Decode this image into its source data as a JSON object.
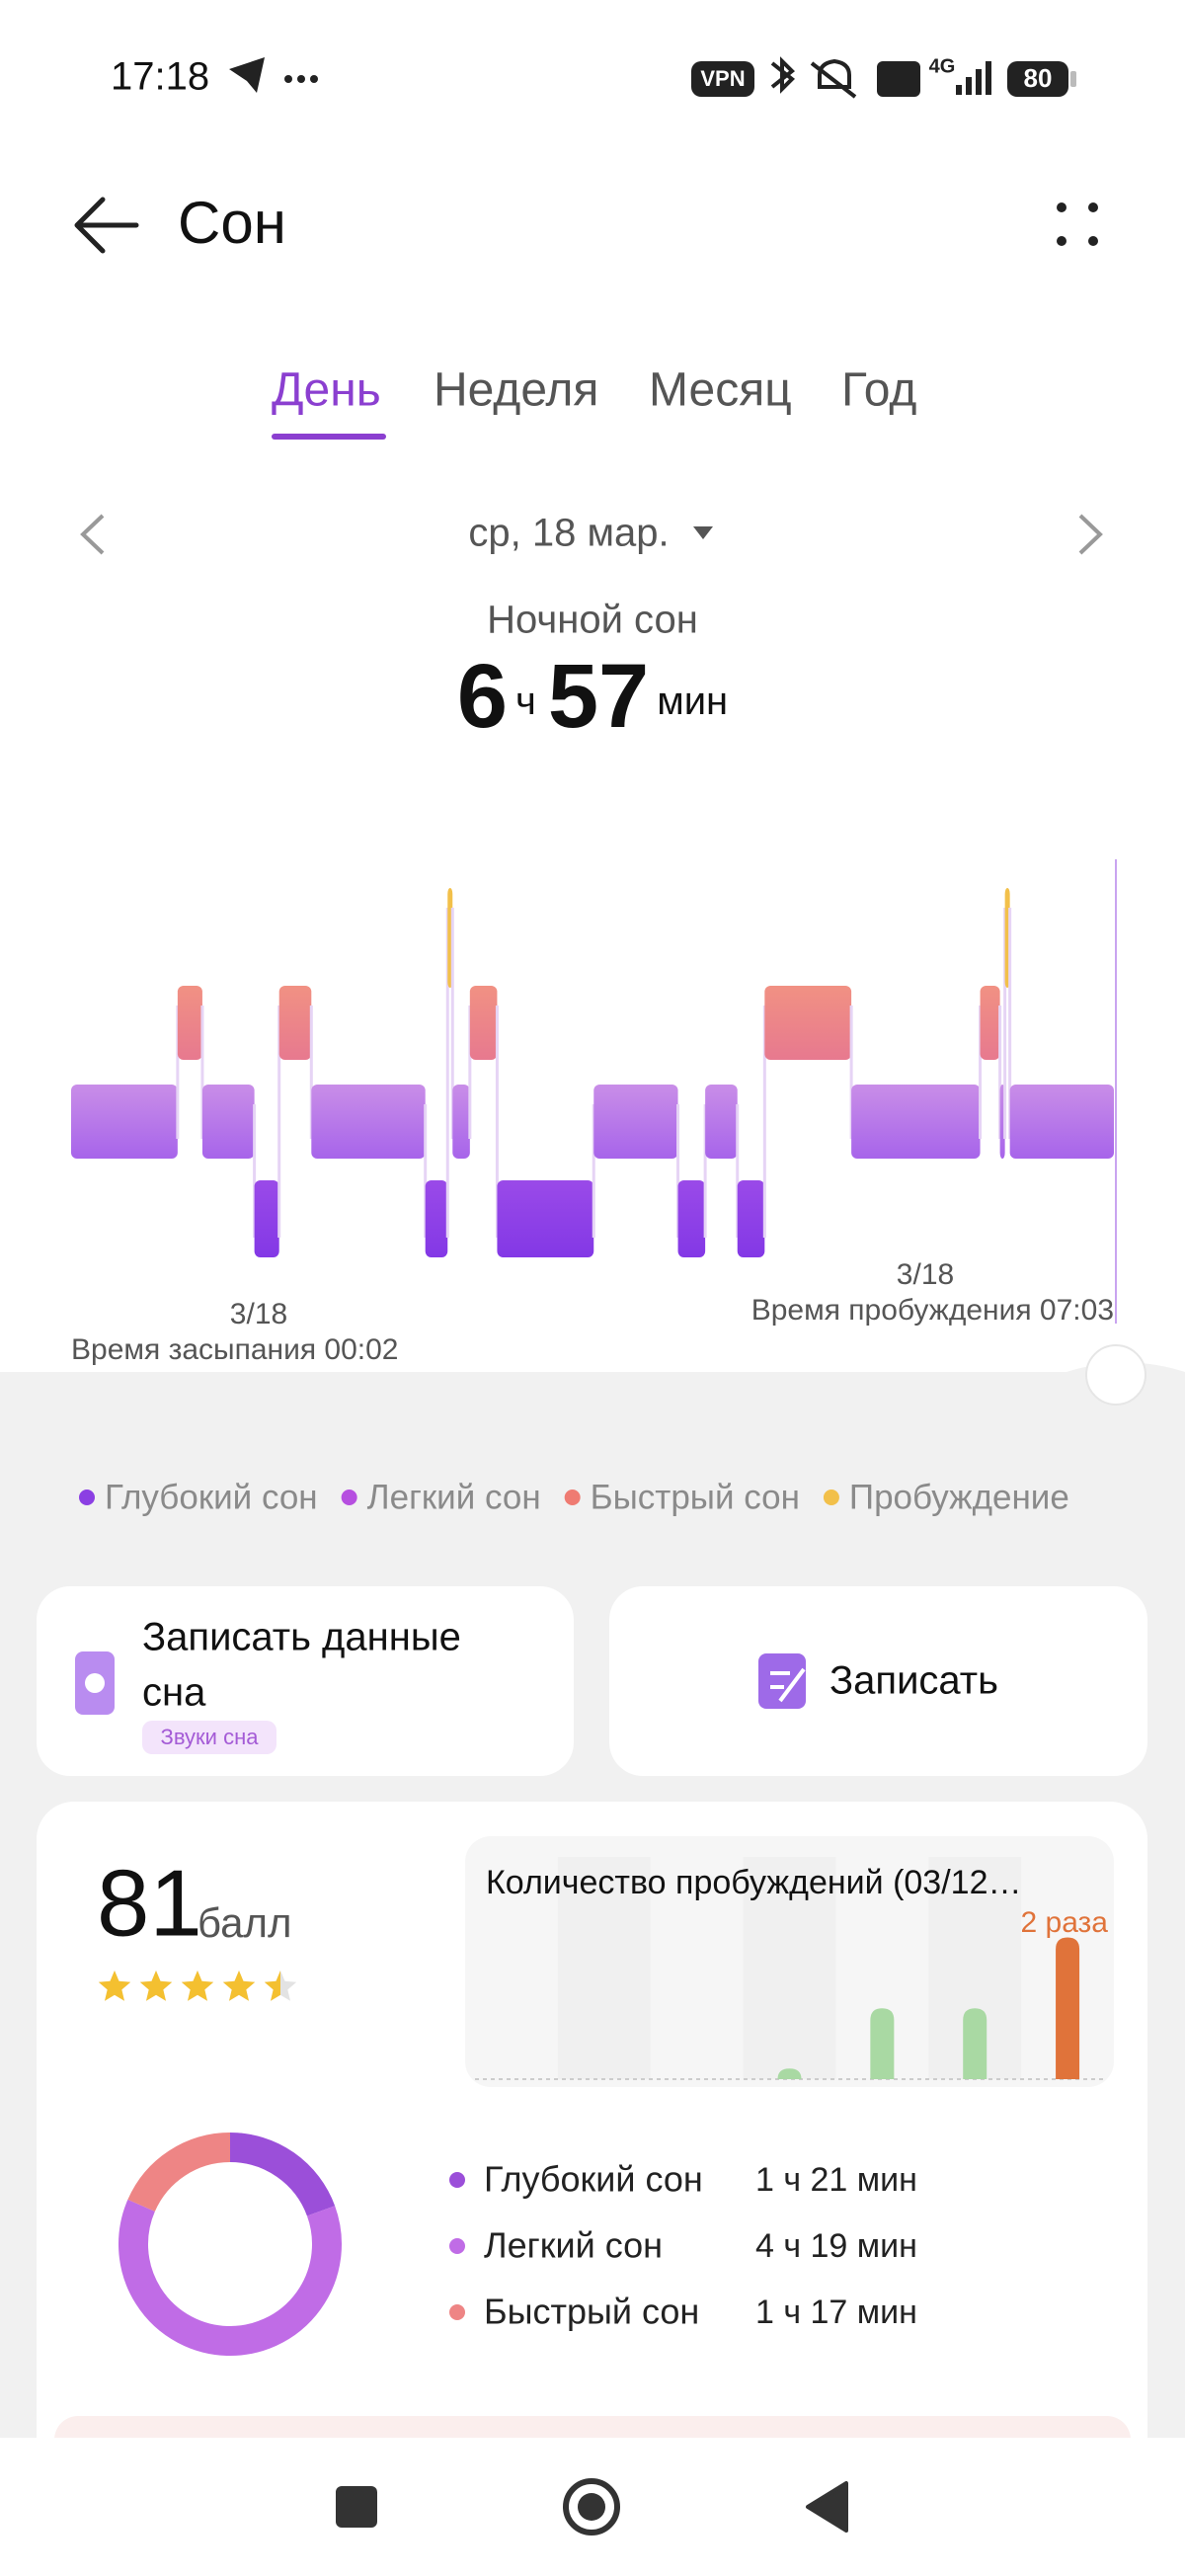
{
  "status_bar": {
    "time": "17:18",
    "vpn": "VPN",
    "network": "4G",
    "battery": "80"
  },
  "header": {
    "title": "Сон"
  },
  "tabs": [
    "День",
    "Неделя",
    "Месяц",
    "Год"
  ],
  "date": "ср, 18 мар.",
  "summary": {
    "label": "Ночной сон",
    "hours": "6",
    "hours_unit": "ч",
    "minutes": "57",
    "minutes_unit": "мин"
  },
  "hypnogram": {
    "start_date": "3/18",
    "start_label": "Время засыпания 00:02",
    "end_date": "3/18",
    "end_label": "Время пробуждения 07:03",
    "xlim": [
      0,
      421
    ],
    "segments": [
      {
        "stage": 1,
        "start": 0,
        "end": 43
      },
      {
        "stage": 2,
        "start": 43,
        "end": 53
      },
      {
        "stage": 1,
        "start": 53,
        "end": 74
      },
      {
        "stage": 0,
        "start": 74,
        "end": 84
      },
      {
        "stage": 2,
        "start": 84,
        "end": 97
      },
      {
        "stage": 1,
        "start": 97,
        "end": 143
      },
      {
        "stage": 0,
        "start": 143,
        "end": 152
      },
      {
        "stage": 3,
        "start": 152,
        "end": 154
      },
      {
        "stage": 1,
        "start": 154,
        "end": 161
      },
      {
        "stage": 2,
        "start": 161,
        "end": 172
      },
      {
        "stage": 0,
        "start": 172,
        "end": 211
      },
      {
        "stage": 1,
        "start": 211,
        "end": 245
      },
      {
        "stage": 0,
        "start": 245,
        "end": 256
      },
      {
        "stage": 1,
        "start": 256,
        "end": 269
      },
      {
        "stage": 0,
        "start": 269,
        "end": 280
      },
      {
        "stage": 2,
        "start": 280,
        "end": 315
      },
      {
        "stage": 1,
        "start": 315,
        "end": 367
      },
      {
        "stage": 2,
        "start": 367,
        "end": 375
      },
      {
        "stage": 1,
        "start": 375,
        "end": 377
      },
      {
        "stage": 3,
        "start": 377,
        "end": 379
      },
      {
        "stage": 1,
        "start": 379,
        "end": 421
      }
    ]
  },
  "legend": [
    {
      "name": "Глубокий сон",
      "color": "#8b3fe3"
    },
    {
      "name": "Легкий сон",
      "color": "#b64fe0"
    },
    {
      "name": "Быстрый сон",
      "color": "#ef7b72"
    },
    {
      "name": "Пробуждение",
      "color": "#f2c04a"
    }
  ],
  "cards": {
    "record_sleep": {
      "title_line1": "Записать данные",
      "title_line2": "сна",
      "tag": "Звуки сна"
    },
    "record": {
      "title": "Записать"
    }
  },
  "score": {
    "value": "81",
    "unit": "балл",
    "stars": 4.5
  },
  "awakenings": {
    "title": "Количество пробуждений (03/12…",
    "latest_label": "2 раза",
    "values": [
      0,
      0,
      0,
      0.15,
      1,
      1,
      2
    ],
    "ylim": [
      0,
      2.3
    ],
    "color": "#a9d9a3",
    "highlight_color": "#e0733a"
  },
  "stages": [
    {
      "name": "Глубокий сон",
      "duration": "1 ч 21 мин",
      "minutes": 81,
      "color": "#9b4fd9"
    },
    {
      "name": "Легкий сон",
      "duration": "4 ч 19 мин",
      "minutes": 259,
      "color": "#c06ce6"
    },
    {
      "name": "Быстрый сон",
      "duration": "1 ч 17 мин",
      "minutes": 77,
      "color": "#ee8585"
    }
  ]
}
